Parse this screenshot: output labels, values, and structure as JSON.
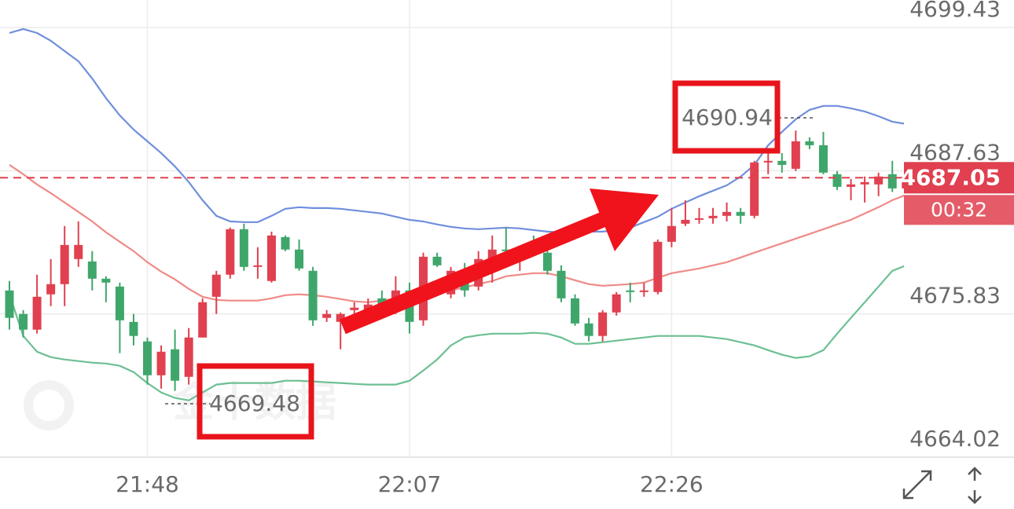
{
  "chart_data": {
    "type": "candlestick",
    "categories": [
      null,
      null,
      null,
      null,
      null,
      null,
      null,
      null,
      null,
      null,
      "21:48",
      null,
      null,
      null,
      null,
      null,
      null,
      null,
      null,
      null,
      null,
      null,
      null,
      null,
      null,
      null,
      null,
      null,
      null,
      "22:07",
      null,
      null,
      null,
      null,
      null,
      null,
      null,
      null,
      null,
      null,
      null,
      null,
      null,
      null,
      null,
      null,
      null,
      null,
      "22:26",
      null,
      null,
      null,
      null,
      null,
      null,
      null,
      null,
      null,
      null,
      null,
      null,
      null,
      null,
      null,
      null,
      null
    ],
    "open": [
      4677.76,
      4675.82,
      4674.53,
      4677.44,
      4678.28,
      4680.35,
      4680.15,
      4678.73,
      4678.08,
      4675.17,
      4673.56,
      4670.77,
      4672.91,
      4670.64,
      4673.88,
      4677.24,
      4679.06,
      4682.81,
      4679.7,
      4678.54,
      4682.16,
      4681.13,
      4679.38,
      4675.5,
      4675.17,
      4676.14,
      4676.14,
      4677.11,
      4676.14,
      4677.76,
      4675.3,
      4680.54,
      4677.44,
      4679.38,
      4678.08,
      4680.35,
      4681.13,
      4680.35,
      4681.13,
      4680.87,
      4679.38,
      4677.11,
      4675.04,
      4674.01,
      4675.95,
      4677.76,
      4677.63,
      4677.63,
      4681.77,
      4683.26,
      4683.58,
      4683.71,
      4683.91,
      4684.23,
      4683.91,
      4688.31,
      4688.44,
      4687.79,
      4690.05,
      4689.73,
      4687.34,
      4686.3,
      4686.5,
      4686.5,
      4687.34,
      4686.17
    ],
    "high": [
      4678.54,
      4676.14,
      4679.06,
      4680.35,
      4683.07,
      4683.45,
      4681.0,
      4678.93,
      4678.41,
      4675.82,
      4673.88,
      4673.23,
      4674.53,
      4674.66,
      4677.11,
      4679.38,
      4682.94,
      4683.26,
      4681.32,
      4682.61,
      4682.29,
      4681.96,
      4679.7,
      4676.14,
      4675.95,
      4676.79,
      4677.11,
      4677.76,
      4678.93,
      4678.41,
      4680.87,
      4680.87,
      4679.7,
      4680.03,
      4681.0,
      4682.29,
      4682.94,
      4681.32,
      4682.29,
      4681.96,
      4679.83,
      4677.44,
      4675.5,
      4676.14,
      4677.63,
      4678.41,
      4678.41,
      4681.96,
      4684.56,
      4685.2,
      4684.56,
      4684.56,
      4685.01,
      4684.56,
      4688.44,
      4689.08,
      4689.08,
      4690.94,
      4690.38,
      4690.83,
      4687.6,
      4686.95,
      4687.15,
      4687.47,
      4688.44,
      4688.05
    ],
    "low": [
      4674.53,
      4673.88,
      4674.21,
      4676.47,
      4676.47,
      4679.7,
      4677.76,
      4676.79,
      4672.59,
      4673.23,
      4670.0,
      4669.67,
      4669.48,
      4670.0,
      4673.88,
      4675.82,
      4678.73,
      4679.38,
      4678.73,
      4678.41,
      4681.0,
      4679.38,
      4674.85,
      4675.17,
      4672.91,
      4675.17,
      4675.82,
      4675.82,
      4675.82,
      4674.21,
      4674.85,
      4679.7,
      4677.11,
      4677.24,
      4677.76,
      4678.41,
      4680.67,
      4679.38,
      4680.87,
      4679.06,
      4676.79,
      4674.85,
      4673.56,
      4673.56,
      4675.69,
      4676.79,
      4677.24,
      4677.44,
      4681.32,
      4683.07,
      4683.26,
      4683.26,
      4683.45,
      4683.26,
      4683.71,
      4687.34,
      4687.47,
      4687.6,
      4689.41,
      4687.34,
      4686.04,
      4685.2,
      4685.01,
      4685.53,
      4685.88,
      4685.88
    ],
    "close": [
      4675.5,
      4674.53,
      4677.24,
      4678.28,
      4681.51,
      4681.51,
      4678.73,
      4678.41,
      4675.3,
      4674.01,
      4670.77,
      4672.71,
      4670.32,
      4673.88,
      4676.79,
      4679.06,
      4682.81,
      4679.7,
      4679.83,
      4682.29,
      4681.13,
      4679.57,
      4675.3,
      4675.82,
      4675.82,
      4676.34,
      4676.6,
      4676.14,
      4677.76,
      4675.17,
      4680.54,
      4679.83,
      4679.38,
      4677.76,
      4680.35,
      4681.13,
      4681.0,
      4681.13,
      4681.0,
      4679.38,
      4677.11,
      4675.04,
      4674.01,
      4675.95,
      4677.44,
      4677.63,
      4677.76,
      4681.77,
      4683.07,
      4683.58,
      4683.71,
      4683.91,
      4684.23,
      4683.91,
      4688.31,
      4688.44,
      4688.11,
      4690.05,
      4689.73,
      4687.47,
      4686.3,
      4686.5,
      4686.69,
      4687.15,
      4686.17,
      4687.05
    ],
    "up_color": "#e0404f",
    "down_color": "#3fa66b",
    "bands": [
      {
        "color": "#6f8fdc",
        "values": [
          4698.98,
          4699.31,
          4698.98,
          4698.34,
          4697.49,
          4696.65,
          4695.23,
          4693.61,
          4692.19,
          4691.02,
          4690.05,
          4689.08,
          4687.98,
          4686.69,
          4685.2,
          4683.91,
          4683.45,
          4683.39,
          4683.39,
          4683.91,
          4684.49,
          4684.62,
          4684.55,
          4684.55,
          4684.49,
          4684.36,
          4684.23,
          4684.1,
          4683.84,
          4683.58,
          4683.45,
          4683.2,
          4683.0,
          4682.87,
          4682.81,
          4682.87,
          4682.94,
          4682.87,
          4682.74,
          4682.61,
          4682.55,
          4682.55,
          4682.61,
          4682.61,
          4682.74,
          4682.94,
          4683.39,
          4683.84,
          4684.49,
          4685.01,
          4685.53,
          4685.98,
          4686.43,
          4687.14,
          4688.11,
          4689.73,
          4690.83,
          4691.87,
          4692.64,
          4692.97,
          4692.97,
          4692.77,
          4692.51,
          4692.12,
          4691.67,
          4691.48
        ]
      },
      {
        "color": "#f08a86",
        "values": [
          4688.11,
          4687.34,
          4686.5,
          4685.78,
          4685.01,
          4684.23,
          4683.45,
          4682.55,
          4681.77,
          4681.0,
          4680.09,
          4679.31,
          4678.67,
          4677.89,
          4677.24,
          4676.98,
          4676.92,
          4676.92,
          4676.92,
          4677.11,
          4677.37,
          4677.44,
          4677.37,
          4677.24,
          4677.05,
          4676.86,
          4676.79,
          4676.92,
          4677.11,
          4677.24,
          4677.37,
          4677.57,
          4677.76,
          4678.02,
          4678.28,
          4678.54,
          4678.93,
          4679.06,
          4679.18,
          4679.18,
          4678.93,
          4678.6,
          4678.28,
          4678.15,
          4678.21,
          4678.28,
          4678.41,
          4678.8,
          4679.18,
          4679.38,
          4679.57,
          4679.83,
          4680.09,
          4680.48,
          4680.87,
          4681.26,
          4681.64,
          4682.03,
          4682.42,
          4682.81,
          4683.2,
          4683.58,
          4684.1,
          4684.62,
          4685.2,
          4685.65
        ]
      },
      {
        "color": "#6cbf93",
        "values": [
          4677.44,
          4674.01,
          4672.71,
          4672.26,
          4672.07,
          4671.94,
          4671.81,
          4671.74,
          4671.55,
          4671.03,
          4670.13,
          4669.35,
          4668.9,
          4668.7,
          4669.35,
          4670.0,
          4670.13,
          4670.13,
          4670.13,
          4670.13,
          4670.32,
          4670.32,
          4670.26,
          4670.19,
          4670.13,
          4670.06,
          4670.0,
          4670.0,
          4670.0,
          4670.32,
          4671.16,
          4672.07,
          4673.23,
          4673.88,
          4674.07,
          4674.2,
          4674.2,
          4674.2,
          4674.27,
          4674.2,
          4673.88,
          4673.36,
          4673.36,
          4673.49,
          4673.62,
          4673.75,
          4673.88,
          4674.01,
          4674.01,
          4674.01,
          4674.01,
          4673.88,
          4673.75,
          4673.49,
          4673.23,
          4672.84,
          4672.46,
          4672.2,
          4672.33,
          4672.84,
          4674.2,
          4675.5,
          4676.79,
          4678.08,
          4679.38,
          4679.83
        ]
      }
    ],
    "ylim": [
      4664.02,
      4701.7
    ],
    "yticks": [
      4664.02,
      4675.83,
      4687.63,
      4699.43
    ],
    "grid": true,
    "last_price": 4687.05,
    "last_price_color": "#e0404f",
    "countdown": "00:32",
    "high_label": 4690.94,
    "low_label": 4669.48,
    "watermark": "金十数据"
  }
}
